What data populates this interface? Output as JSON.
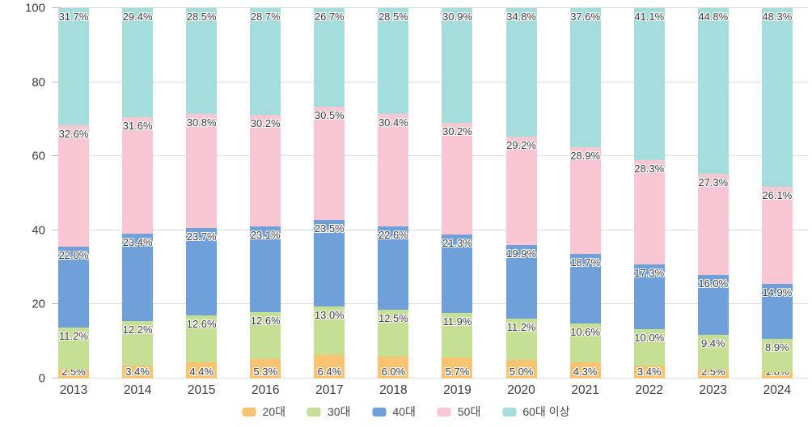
{
  "chart_data": {
    "type": "bar",
    "stacked": true,
    "title": "",
    "xlabel": "",
    "ylabel": "",
    "ylim": [
      0,
      100
    ],
    "yticks": [
      0,
      20,
      40,
      60,
      80,
      100
    ],
    "grid": true,
    "legend_position": "bottom",
    "value_suffix": "%",
    "categories": [
      "2013",
      "2014",
      "2015",
      "2016",
      "2017",
      "2018",
      "2019",
      "2020",
      "2021",
      "2022",
      "2023",
      "2024"
    ],
    "series": [
      {
        "name": "20대",
        "color": "#F8C471",
        "values": [
          2.5,
          3.4,
          4.4,
          5.3,
          6.4,
          6.0,
          5.7,
          5.0,
          4.3,
          3.4,
          2.5,
          1.8
        ]
      },
      {
        "name": "30대",
        "color": "#C5DF95",
        "values": [
          11.2,
          12.2,
          12.6,
          12.6,
          13.0,
          12.5,
          11.9,
          11.2,
          10.6,
          10.0,
          9.4,
          8.9
        ]
      },
      {
        "name": "40대",
        "color": "#6FA0D9",
        "values": [
          22.0,
          23.4,
          23.7,
          23.1,
          23.5,
          22.6,
          21.3,
          19.9,
          18.7,
          17.3,
          16.0,
          14.9
        ]
      },
      {
        "name": "50대",
        "color": "#F9C6D3",
        "values": [
          32.6,
          31.6,
          30.8,
          30.2,
          30.5,
          30.4,
          30.2,
          29.2,
          28.9,
          28.3,
          27.3,
          26.1
        ]
      },
      {
        "name": "60대 이상",
        "color": "#A5DCDC",
        "values": [
          31.7,
          29.4,
          28.5,
          28.7,
          26.7,
          28.5,
          30.9,
          34.8,
          37.6,
          41.1,
          44.8,
          48.3
        ]
      }
    ],
    "colors": {
      "gridline": "#dcdcdc",
      "tick": "#b9b9b9",
      "axis_text": "#3d3d3d",
      "label_text": "#3a3a3a"
    }
  }
}
